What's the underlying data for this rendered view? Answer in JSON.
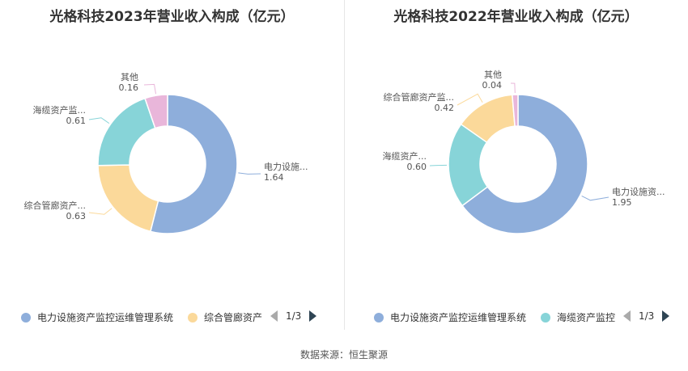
{
  "chart_data": [
    {
      "type": "pie",
      "title": "光格科技2023年营业收入构成（亿元）",
      "slices": [
        {
          "name": "电力设施资产监控运维管理系统",
          "label": "电力设施...",
          "value": 1.64,
          "value_text": "1.64",
          "color": "#8eaedb"
        },
        {
          "name": "综合管廊资产监控",
          "label": "综合管廊资产...",
          "value": 0.63,
          "value_text": "0.63",
          "color": "#fbd99a"
        },
        {
          "name": "海缆资产监控",
          "label": "海缆资产监...",
          "value": 0.61,
          "value_text": "0.61",
          "color": "#87d4d8"
        },
        {
          "name": "其他",
          "label": "其他",
          "value": 0.16,
          "value_text": "0.16",
          "color": "#e9b6da"
        }
      ],
      "legend": {
        "items": [
          {
            "name": "电力设施资产监控运维管理系统",
            "color": "#8eaedb"
          },
          {
            "name": "综合管廊资产",
            "color": "#fbd99a"
          }
        ],
        "page": "1/3"
      }
    },
    {
      "type": "pie",
      "title": "光格科技2022年营业收入构成（亿元）",
      "slices": [
        {
          "name": "电力设施资产监控运维管理系统",
          "label": "电力设施资...",
          "value": 1.95,
          "value_text": "1.95",
          "color": "#8eaedb"
        },
        {
          "name": "海缆资产监控",
          "label": "海缆资产...",
          "value": 0.6,
          "value_text": "0.60",
          "color": "#87d4d8"
        },
        {
          "name": "综合管廊资产监控",
          "label": "综合管廊资产监...",
          "value": 0.42,
          "value_text": "0.42",
          "color": "#fbd99a"
        },
        {
          "name": "其他",
          "label": "其他",
          "value": 0.04,
          "value_text": "0.04",
          "color": "#e9b6da"
        }
      ],
      "legend": {
        "items": [
          {
            "name": "电力设施资产监控运维管理系统",
            "color": "#8eaedb"
          },
          {
            "name": "海缆资产监控",
            "color": "#87d4d8"
          }
        ],
        "page": "1/3"
      }
    }
  ],
  "source": "数据来源：恒生聚源"
}
